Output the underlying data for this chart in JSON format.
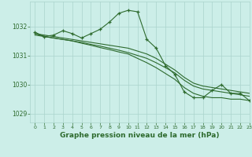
{
  "title": "Graphe pression niveau de la mer (hPa)",
  "bg_color": "#cceee8",
  "grid_color": "#aad4cc",
  "line_color": "#2d6a2d",
  "xlim": [
    -0.5,
    23
  ],
  "ylim": [
    1028.7,
    1032.85
  ],
  "yticks": [
    1029,
    1030,
    1031,
    1032
  ],
  "xticks": [
    0,
    1,
    2,
    3,
    4,
    5,
    6,
    7,
    8,
    9,
    10,
    11,
    12,
    13,
    14,
    15,
    16,
    17,
    18,
    19,
    20,
    21,
    22,
    23
  ],
  "series_peak": {
    "x": [
      0,
      1,
      2,
      3,
      4,
      5,
      6,
      7,
      8,
      9,
      10,
      11,
      12,
      13,
      14,
      15,
      16,
      17,
      18,
      19,
      20,
      21,
      22,
      23
    ],
    "y": [
      1031.8,
      1031.65,
      1031.7,
      1031.85,
      1031.75,
      1031.6,
      1031.75,
      1031.9,
      1032.15,
      1032.45,
      1032.55,
      1032.5,
      1031.55,
      1031.25,
      1030.65,
      1030.35,
      1029.75,
      1029.55,
      1029.55,
      1029.8,
      1030.0,
      1029.7,
      1029.7,
      1029.45
    ]
  },
  "series_diag1": {
    "x": [
      0,
      1,
      2,
      3,
      4,
      5,
      6,
      7,
      8,
      9,
      10,
      11,
      12,
      13,
      14,
      15,
      16,
      17,
      18,
      19,
      20,
      21,
      22,
      23
    ],
    "y": [
      1031.75,
      1031.7,
      1031.65,
      1031.6,
      1031.55,
      1031.5,
      1031.45,
      1031.4,
      1031.35,
      1031.3,
      1031.25,
      1031.15,
      1031.05,
      1030.9,
      1030.7,
      1030.5,
      1030.25,
      1030.05,
      1029.95,
      1029.9,
      1029.85,
      1029.8,
      1029.75,
      1029.7
    ]
  },
  "series_diag2": {
    "x": [
      0,
      1,
      2,
      3,
      4,
      5,
      6,
      7,
      8,
      9,
      10,
      11,
      12,
      13,
      14,
      15,
      16,
      17,
      18,
      19,
      20,
      21,
      22,
      23
    ],
    "y": [
      1031.7,
      1031.65,
      1031.6,
      1031.55,
      1031.5,
      1031.45,
      1031.38,
      1031.32,
      1031.25,
      1031.18,
      1031.1,
      1031.0,
      1030.9,
      1030.75,
      1030.58,
      1030.4,
      1030.15,
      1029.95,
      1029.85,
      1029.8,
      1029.75,
      1029.7,
      1029.65,
      1029.6
    ]
  },
  "series_diag3": {
    "x": [
      0,
      1,
      2,
      3,
      4,
      5,
      6,
      7,
      8,
      9,
      10,
      11,
      12,
      13,
      14,
      15,
      16,
      17,
      18,
      19,
      20,
      21,
      22,
      23
    ],
    "y": [
      1031.75,
      1031.65,
      1031.6,
      1031.55,
      1031.5,
      1031.42,
      1031.35,
      1031.27,
      1031.2,
      1031.12,
      1031.05,
      1030.9,
      1030.75,
      1030.58,
      1030.38,
      1030.18,
      1029.9,
      1029.7,
      1029.6,
      1029.55,
      1029.55,
      1029.5,
      1029.5,
      1029.45
    ]
  }
}
